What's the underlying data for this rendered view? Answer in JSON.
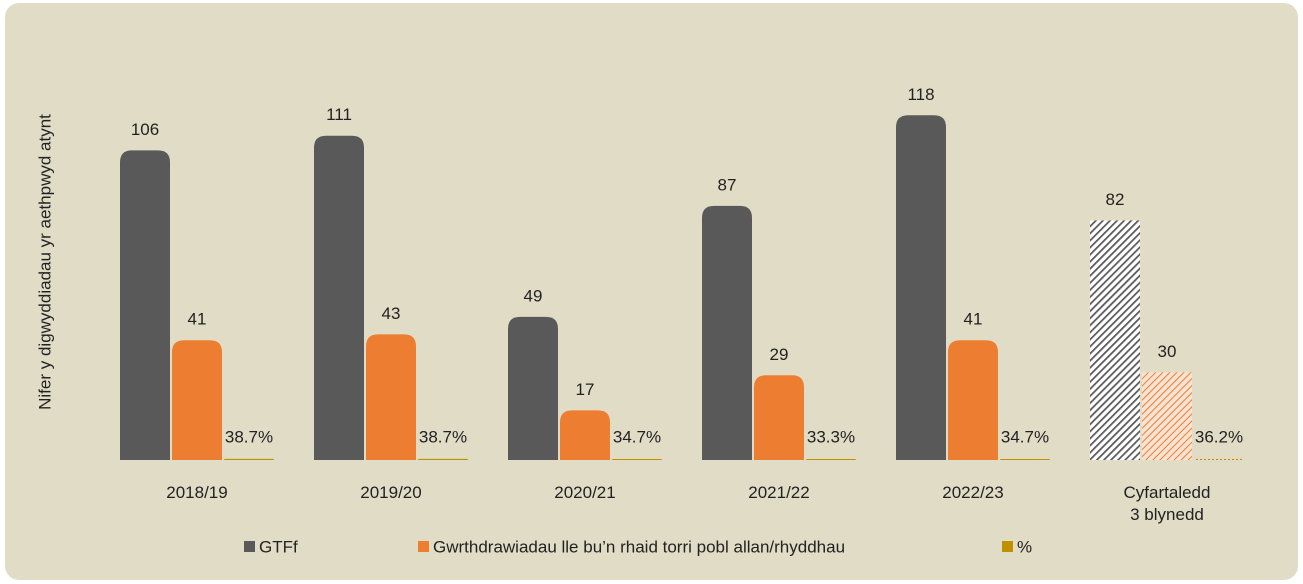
{
  "chart_data": {
    "type": "bar",
    "y_axis_label": "Nifer y digwyddiadau yr aethpwyd atynt",
    "categories": [
      "2018/19",
      "2019/20",
      "2020/21",
      "2021/22",
      "2022/23",
      "Cyfartaledd\n3 blynedd"
    ],
    "series": [
      {
        "name": "GTFf",
        "color": "#595959",
        "values": [
          106,
          111,
          49,
          87,
          118,
          82
        ]
      },
      {
        "name": "Gwrthdrawiadau lle bu’n rhaid torri pobl allan/rhyddhau",
        "color": "#ed7d31",
        "values": [
          41,
          43,
          17,
          29,
          41,
          30
        ]
      },
      {
        "name": "%",
        "color": "#bf9000",
        "values": [
          0.387,
          0.387,
          0.347,
          0.333,
          0.347,
          0.362
        ],
        "value_labels": [
          "38.7%",
          "38.7%",
          "34.7%",
          "33.3%",
          "34.7%",
          "36.2%"
        ]
      }
    ],
    "ylim": [
      0,
      140
    ],
    "legend": "bottom"
  }
}
